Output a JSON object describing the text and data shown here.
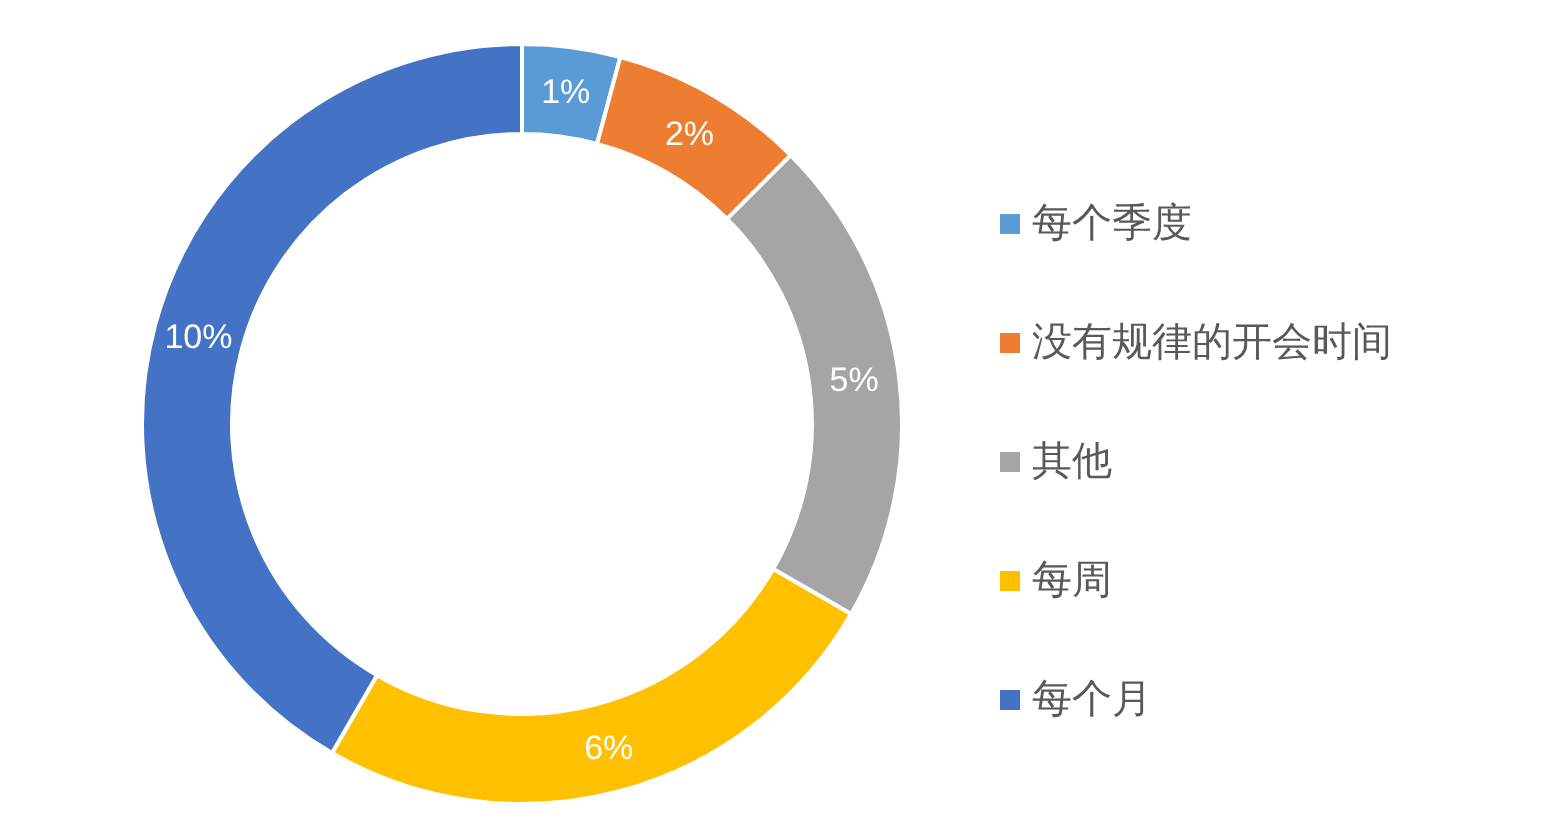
{
  "chart_data": {
    "type": "donut",
    "categories": [
      "每个季度",
      "没有规律的开会时间",
      "其他",
      "每周",
      "每个月"
    ],
    "values": [
      1,
      2,
      5,
      6,
      10
    ],
    "colors": [
      "#5b9bd5",
      "#ed7d31",
      "#a5a5a5",
      "#ffc000",
      "#4472c4"
    ],
    "value_labels": [
      "1%",
      "2%",
      "5%",
      "6%",
      "10%"
    ],
    "legend": "right"
  }
}
